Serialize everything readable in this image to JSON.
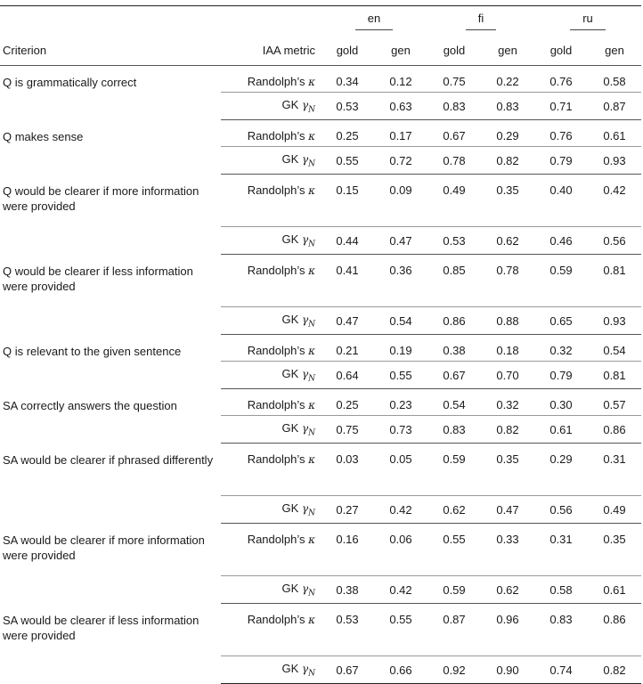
{
  "languages": [
    "en",
    "fi",
    "ru"
  ],
  "headers": {
    "criterion": "Criterion",
    "metric": "IAA metric",
    "gold": "gold",
    "gen": "gen"
  },
  "metrics": {
    "randolph": "Randolph’s",
    "randolph_symbol": "κ",
    "gk": "GK",
    "gk_symbol": "γ",
    "gk_sub": "N"
  },
  "rows": [
    {
      "criterion": "Q is grammatically correct",
      "randolph": [
        "0.34",
        "0.12",
        "0.75",
        "0.22",
        "0.76",
        "0.58"
      ],
      "gk": [
        "0.53",
        "0.63",
        "0.83",
        "0.83",
        "0.71",
        "0.87"
      ]
    },
    {
      "criterion": "Q makes sense",
      "randolph": [
        "0.25",
        "0.17",
        "0.67",
        "0.29",
        "0.76",
        "0.61"
      ],
      "gk": [
        "0.55",
        "0.72",
        "0.78",
        "0.82",
        "0.79",
        "0.93"
      ]
    },
    {
      "criterion": "Q would be clearer if more information were provided",
      "randolph": [
        "0.15",
        "0.09",
        "0.49",
        "0.35",
        "0.40",
        "0.42"
      ],
      "gk": [
        "0.44",
        "0.47",
        "0.53",
        "0.62",
        "0.46",
        "0.56"
      ]
    },
    {
      "criterion": "Q would be clearer if less information were provided",
      "randolph": [
        "0.41",
        "0.36",
        "0.85",
        "0.78",
        "0.59",
        "0.81"
      ],
      "gk": [
        "0.47",
        "0.54",
        "0.86",
        "0.88",
        "0.65",
        "0.93"
      ]
    },
    {
      "criterion": "Q is relevant to the given sentence",
      "randolph": [
        "0.21",
        "0.19",
        "0.38",
        "0.18",
        "0.32",
        "0.54"
      ],
      "gk": [
        "0.64",
        "0.55",
        "0.67",
        "0.70",
        "0.79",
        "0.81"
      ]
    },
    {
      "criterion": "SA correctly answers the question",
      "randolph": [
        "0.25",
        "0.23",
        "0.54",
        "0.32",
        "0.30",
        "0.57"
      ],
      "gk": [
        "0.75",
        "0.73",
        "0.83",
        "0.82",
        "0.61",
        "0.86"
      ]
    },
    {
      "criterion": "SA would be clearer if phrased differently",
      "randolph": [
        "0.03",
        "0.05",
        "0.59",
        "0.35",
        "0.29",
        "0.31"
      ],
      "gk": [
        "0.27",
        "0.42",
        "0.62",
        "0.47",
        "0.56",
        "0.49"
      ]
    },
    {
      "criterion": "SA would be clearer if more information were provided",
      "randolph": [
        "0.16",
        "0.06",
        "0.55",
        "0.33",
        "0.31",
        "0.35"
      ],
      "gk": [
        "0.38",
        "0.42",
        "0.59",
        "0.62",
        "0.58",
        "0.61"
      ]
    },
    {
      "criterion": "SA would be clearer if less information were provided",
      "randolph": [
        "0.53",
        "0.55",
        "0.87",
        "0.96",
        "0.83",
        "0.86"
      ],
      "gk": [
        "0.67",
        "0.66",
        "0.92",
        "0.90",
        "0.74",
        "0.82"
      ]
    }
  ]
}
